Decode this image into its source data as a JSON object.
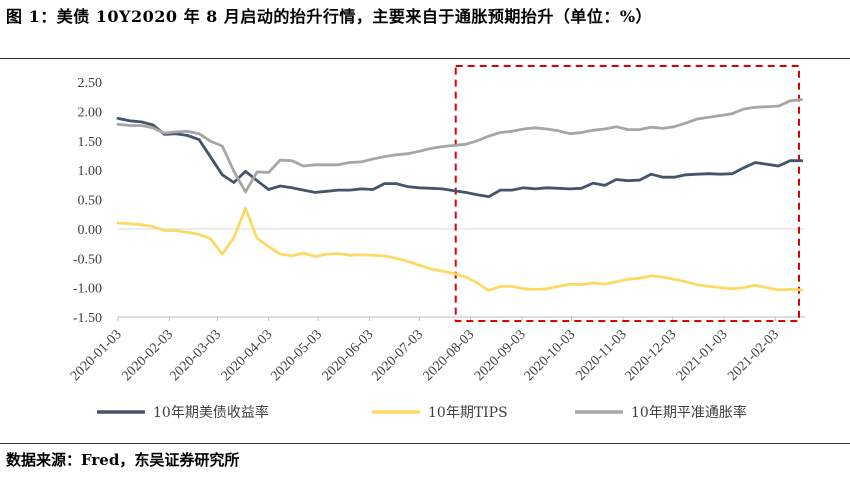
{
  "figure": {
    "title": "图 1：美债 10Y2020 年 8 月启动的抬升行情，主要来自于通胀预期抬升（单位：%）",
    "source": "数据来源：Fred，东吴证券研究所"
  },
  "chart_data": {
    "type": "line",
    "title": "",
    "xlabel": "",
    "ylabel": "",
    "ylim": [
      -1.5,
      2.5
    ],
    "yticks": [
      "2.50",
      "2.00",
      "1.50",
      "1.00",
      "0.50",
      "0.00",
      "-0.50",
      "-1.00",
      "-1.50"
    ],
    "xticks": [
      "2020-01-03",
      "2020-02-03",
      "2020-03-03",
      "2020-04-03",
      "2020-05-03",
      "2020-06-03",
      "2020-07-03",
      "2020-08-03",
      "2020-09-03",
      "2020-10-03",
      "2020-11-03",
      "2020-12-03",
      "2021-01-03",
      "2021-02-03"
    ],
    "grid": false,
    "legend_position": "bottom",
    "x": [
      "2020-01-03",
      "2020-01-10",
      "2020-01-17",
      "2020-01-24",
      "2020-01-31",
      "2020-02-07",
      "2020-02-14",
      "2020-02-21",
      "2020-02-28",
      "2020-03-06",
      "2020-03-13",
      "2020-03-20",
      "2020-03-27",
      "2020-04-03",
      "2020-04-10",
      "2020-04-17",
      "2020-04-24",
      "2020-05-01",
      "2020-05-08",
      "2020-05-15",
      "2020-05-22",
      "2020-05-29",
      "2020-06-05",
      "2020-06-12",
      "2020-06-19",
      "2020-06-26",
      "2020-07-03",
      "2020-07-10",
      "2020-07-17",
      "2020-07-24",
      "2020-07-31",
      "2020-08-07",
      "2020-08-14",
      "2020-08-21",
      "2020-08-28",
      "2020-09-04",
      "2020-09-11",
      "2020-09-18",
      "2020-09-25",
      "2020-10-02",
      "2020-10-09",
      "2020-10-16",
      "2020-10-23",
      "2020-10-30",
      "2020-11-06",
      "2020-11-13",
      "2020-11-20",
      "2020-11-27",
      "2020-12-04",
      "2020-12-11",
      "2020-12-18",
      "2020-12-25",
      "2021-01-01",
      "2021-01-08",
      "2021-01-15",
      "2021-01-22",
      "2021-01-29",
      "2021-02-05",
      "2021-02-12",
      "2021-02-19"
    ],
    "series": [
      {
        "name": "10年期美债收益率",
        "color": "#44546a",
        "values": [
          1.88,
          1.84,
          1.82,
          1.77,
          1.61,
          1.62,
          1.59,
          1.52,
          1.22,
          0.92,
          0.79,
          0.98,
          0.82,
          0.67,
          0.73,
          0.7,
          0.66,
          0.62,
          0.64,
          0.66,
          0.66,
          0.68,
          0.67,
          0.77,
          0.77,
          0.72,
          0.7,
          0.69,
          0.68,
          0.65,
          0.62,
          0.58,
          0.55,
          0.66,
          0.66,
          0.7,
          0.68,
          0.7,
          0.69,
          0.68,
          0.69,
          0.78,
          0.74,
          0.84,
          0.82,
          0.83,
          0.93,
          0.88,
          0.88,
          0.92,
          0.93,
          0.94,
          0.93,
          0.94,
          1.04,
          1.13,
          1.1,
          1.07,
          1.16,
          1.16
        ]
      },
      {
        "name": "10年期TIPS",
        "color": "#ffd966",
        "values": [
          0.1,
          0.09,
          0.07,
          0.04,
          -0.03,
          -0.03,
          -0.06,
          -0.09,
          -0.17,
          -0.43,
          -0.15,
          0.35,
          -0.16,
          -0.3,
          -0.43,
          -0.46,
          -0.41,
          -0.47,
          -0.43,
          -0.42,
          -0.45,
          -0.44,
          -0.45,
          -0.46,
          -0.5,
          -0.55,
          -0.62,
          -0.68,
          -0.72,
          -0.76,
          -0.82,
          -0.92,
          -1.05,
          -0.98,
          -0.98,
          -1.02,
          -1.03,
          -1.02,
          -0.98,
          -0.94,
          -0.95,
          -0.92,
          -0.94,
          -0.9,
          -0.86,
          -0.84,
          -0.8,
          -0.82,
          -0.86,
          -0.9,
          -0.95,
          -0.98,
          -1.0,
          -1.02,
          -1.0,
          -0.96,
          -1.0,
          -1.04,
          -1.03,
          -1.04
        ]
      },
      {
        "name": "10年期平准通胀率",
        "color": "#a6a6a6",
        "values": [
          1.78,
          1.76,
          1.76,
          1.72,
          1.63,
          1.65,
          1.66,
          1.62,
          1.49,
          1.41,
          0.98,
          0.63,
          0.97,
          0.96,
          1.17,
          1.16,
          1.07,
          1.09,
          1.09,
          1.09,
          1.13,
          1.14,
          1.19,
          1.23,
          1.26,
          1.28,
          1.32,
          1.37,
          1.4,
          1.42,
          1.44,
          1.5,
          1.58,
          1.64,
          1.66,
          1.7,
          1.72,
          1.7,
          1.67,
          1.62,
          1.64,
          1.68,
          1.7,
          1.74,
          1.69,
          1.69,
          1.73,
          1.71,
          1.74,
          1.8,
          1.87,
          1.9,
          1.93,
          1.96,
          2.04,
          2.07,
          2.08,
          2.09,
          2.18,
          2.2
        ]
      }
    ],
    "annotation": "red dashed highlight rectangle over 2020-08 to 2021-02"
  }
}
